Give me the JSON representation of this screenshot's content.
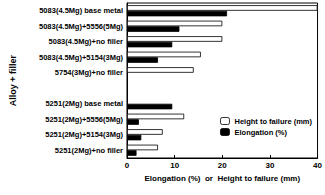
{
  "chart_data": {
    "type": "bar",
    "orientation": "horizontal",
    "categories": [
      "5083(4.5Mg) base metal",
      "5083(4.5Mg)+5556(5Mg)",
      "5083(4.5Mg)+no filler",
      "5083(4.5Mg)+5154(3Mg)",
      "5754(3Mg)+no filler",
      null,
      "5251(2Mg) base metal",
      "5251(2Mg)+5556(5Mg)",
      "5251(2Mg)+5154(3Mg)",
      "5251(2Mg)+no filler"
    ],
    "series": [
      {
        "name": "Height to failure (mm)",
        "color": "#ffffff",
        "values": [
          40,
          20,
          20,
          15.5,
          14,
          null,
          null,
          12,
          7.5,
          6.5
        ]
      },
      {
        "name": "Elongation (%)",
        "color": "#000000",
        "values": [
          21,
          11,
          9.5,
          6.5,
          null,
          null,
          9.5,
          2.5,
          3,
          2
        ]
      }
    ],
    "x_label": "Elongation (%)  or  Height to failure (mm)",
    "y_label": "Alloy + filler",
    "xlim": [
      0,
      40
    ],
    "xticks": [
      0,
      10,
      20,
      30,
      40
    ],
    "legend": "lower right",
    "grid": false
  }
}
